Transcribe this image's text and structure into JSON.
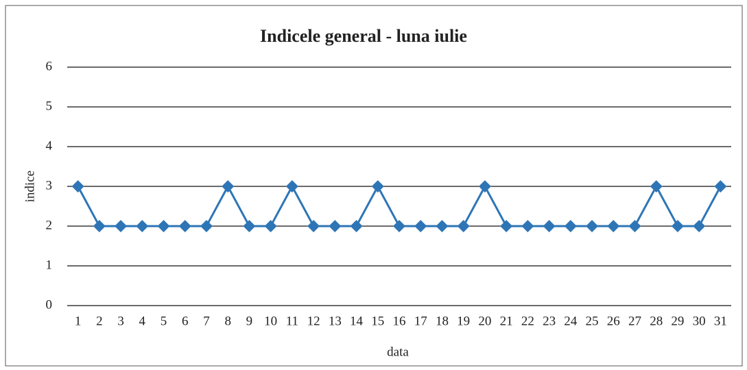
{
  "chart_data": {
    "type": "line",
    "title": "Indicele general - luna iulie",
    "x_label": "data",
    "y_label": "indice",
    "categories": [
      1,
      2,
      3,
      4,
      5,
      6,
      7,
      8,
      9,
      10,
      11,
      12,
      13,
      14,
      15,
      16,
      17,
      18,
      19,
      20,
      21,
      22,
      23,
      24,
      25,
      26,
      27,
      28,
      29,
      30,
      31
    ],
    "series": [
      {
        "name": "indice",
        "color": "#2e75b6",
        "values": [
          3,
          2,
          2,
          2,
          2,
          2,
          2,
          3,
          2,
          2,
          3,
          2,
          2,
          2,
          3,
          2,
          2,
          2,
          2,
          3,
          2,
          2,
          2,
          2,
          2,
          2,
          2,
          3,
          2,
          2,
          3
        ]
      }
    ],
    "ylim": [
      0,
      6
    ],
    "yticks": [
      0,
      1,
      2,
      3,
      4,
      5,
      6
    ],
    "grid": true
  }
}
